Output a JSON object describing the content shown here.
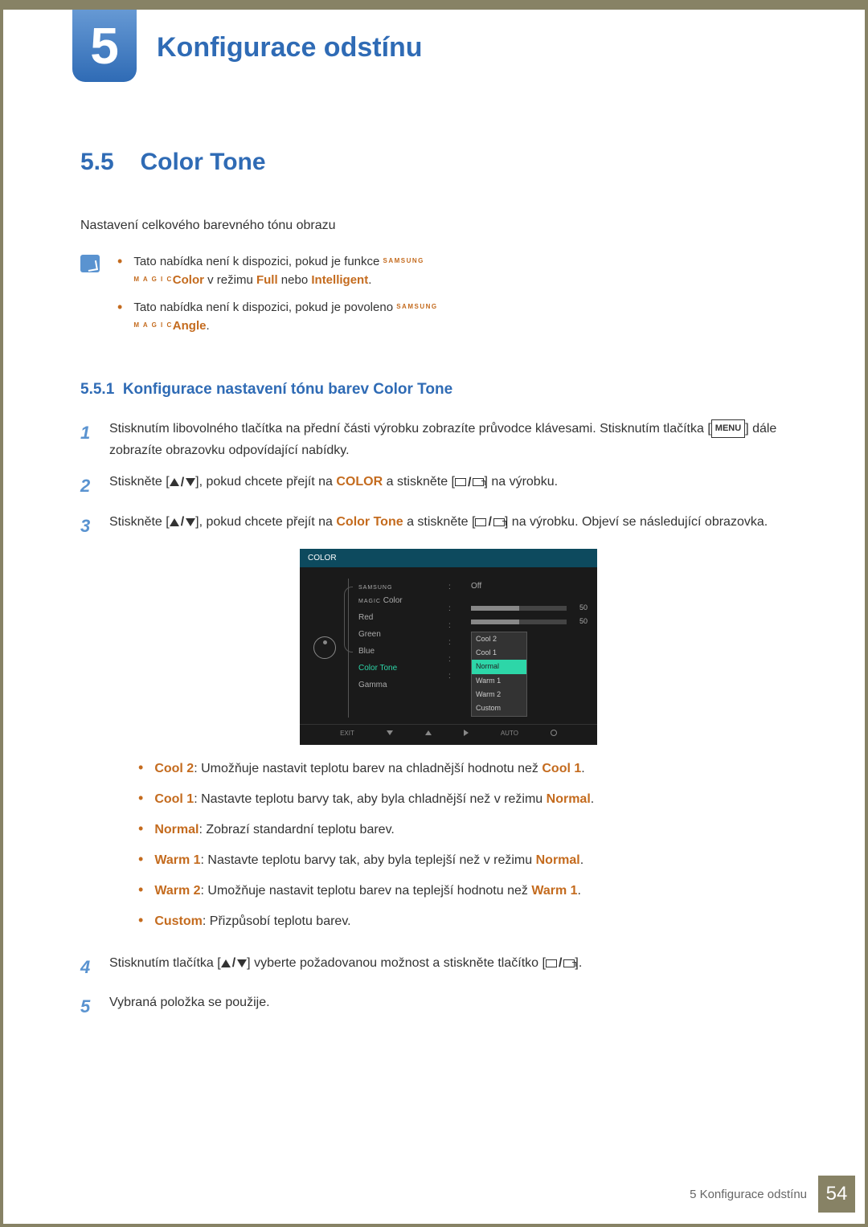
{
  "chapter": {
    "number": "5",
    "title": "Konfigurace odstínu"
  },
  "section": {
    "number": "5.5",
    "title": "Color Tone"
  },
  "intro": "Nastavení celkového barevného tónu obrazu",
  "notes": [
    {
      "pre": "Tato nabídka není k dispozici, pokud je funkce ",
      "magic": "SAMSUNG\nMAGIC",
      "mid": "Color",
      "mid2": " v režimu ",
      "b1": "Full",
      "or": " nebo ",
      "b2": "Intelligent",
      "post": "."
    },
    {
      "pre": "Tato nabídka není k dispozici, pokud je povoleno ",
      "magic": "SAMSUNG\nMAGIC",
      "mid": "Angle",
      "post": "."
    }
  ],
  "subsection": {
    "number": "5.5.1",
    "title": "Konfigurace nastavení tónu barev Color Tone"
  },
  "steps": {
    "s1a": "Stisknutím libovolného tlačítka na přední části výrobku zobrazíte průvodce klávesami. Stisknutím tlačítka [",
    "s1b": "] dále zobrazíte obrazovku odpovídající nabídky.",
    "menu": "MENU",
    "s2a": "Stiskněte [",
    "s2b": "], pokud chcete přejít na ",
    "s2c": " a stiskněte [",
    "s2d": "] na výrobku.",
    "color": "COLOR",
    "s3a": "Stiskněte [",
    "s3b": "], pokud chcete přejít na ",
    "s3c": " a stiskněte [",
    "s3d": "] na výrobku. Objeví se následující obrazovka.",
    "colortone": "Color Tone",
    "s4a": "Stisknutím tlačítka [",
    "s4b": "] vyberte požadovanou možnost a stiskněte tlačítko [",
    "s4c": "].",
    "s5": "Vybraná položka se použije."
  },
  "osd": {
    "header": "COLOR",
    "magic": "SAMSUNG",
    "magic2": "MAGIC",
    "magiccolor": " Color",
    "left": [
      "Red",
      "Green",
      "Blue",
      "Color Tone",
      "Gamma"
    ],
    "off": "Off",
    "red": 50,
    "green": 50,
    "dropdown": [
      "Cool 2",
      "Cool 1",
      "Normal",
      "Warm 1",
      "Warm 2",
      "Custom"
    ],
    "footer": {
      "exit": "EXIT",
      "auto": "AUTO"
    }
  },
  "bullets": [
    {
      "b": "Cool 2",
      "t": ": Umožňuje nastavit teplotu barev na chladnější hodnotu než ",
      "b2": "Cool 1",
      "post": "."
    },
    {
      "b": "Cool 1",
      "t": ": Nastavte teplotu barvy tak, aby byla chladnější než v režimu ",
      "b2": "Normal",
      "post": "."
    },
    {
      "b": "Normal",
      "t": ": Zobrazí standardní teplotu barev.",
      "b2": "",
      "post": ""
    },
    {
      "b": "Warm 1",
      "t": ": Nastavte teplotu barvy tak, aby byla teplejší než v režimu ",
      "b2": "Normal",
      "post": "."
    },
    {
      "b": "Warm 2",
      "t": ": Umožňuje nastavit teplotu barev na teplejší hodnotu než ",
      "b2": "Warm 1",
      "post": "."
    },
    {
      "b": "Custom",
      "t": ": Přizpůsobí teplotu barev.",
      "b2": "",
      "post": ""
    }
  ],
  "footer": {
    "text": "5 Konfigurace odstínu",
    "page": "54"
  }
}
